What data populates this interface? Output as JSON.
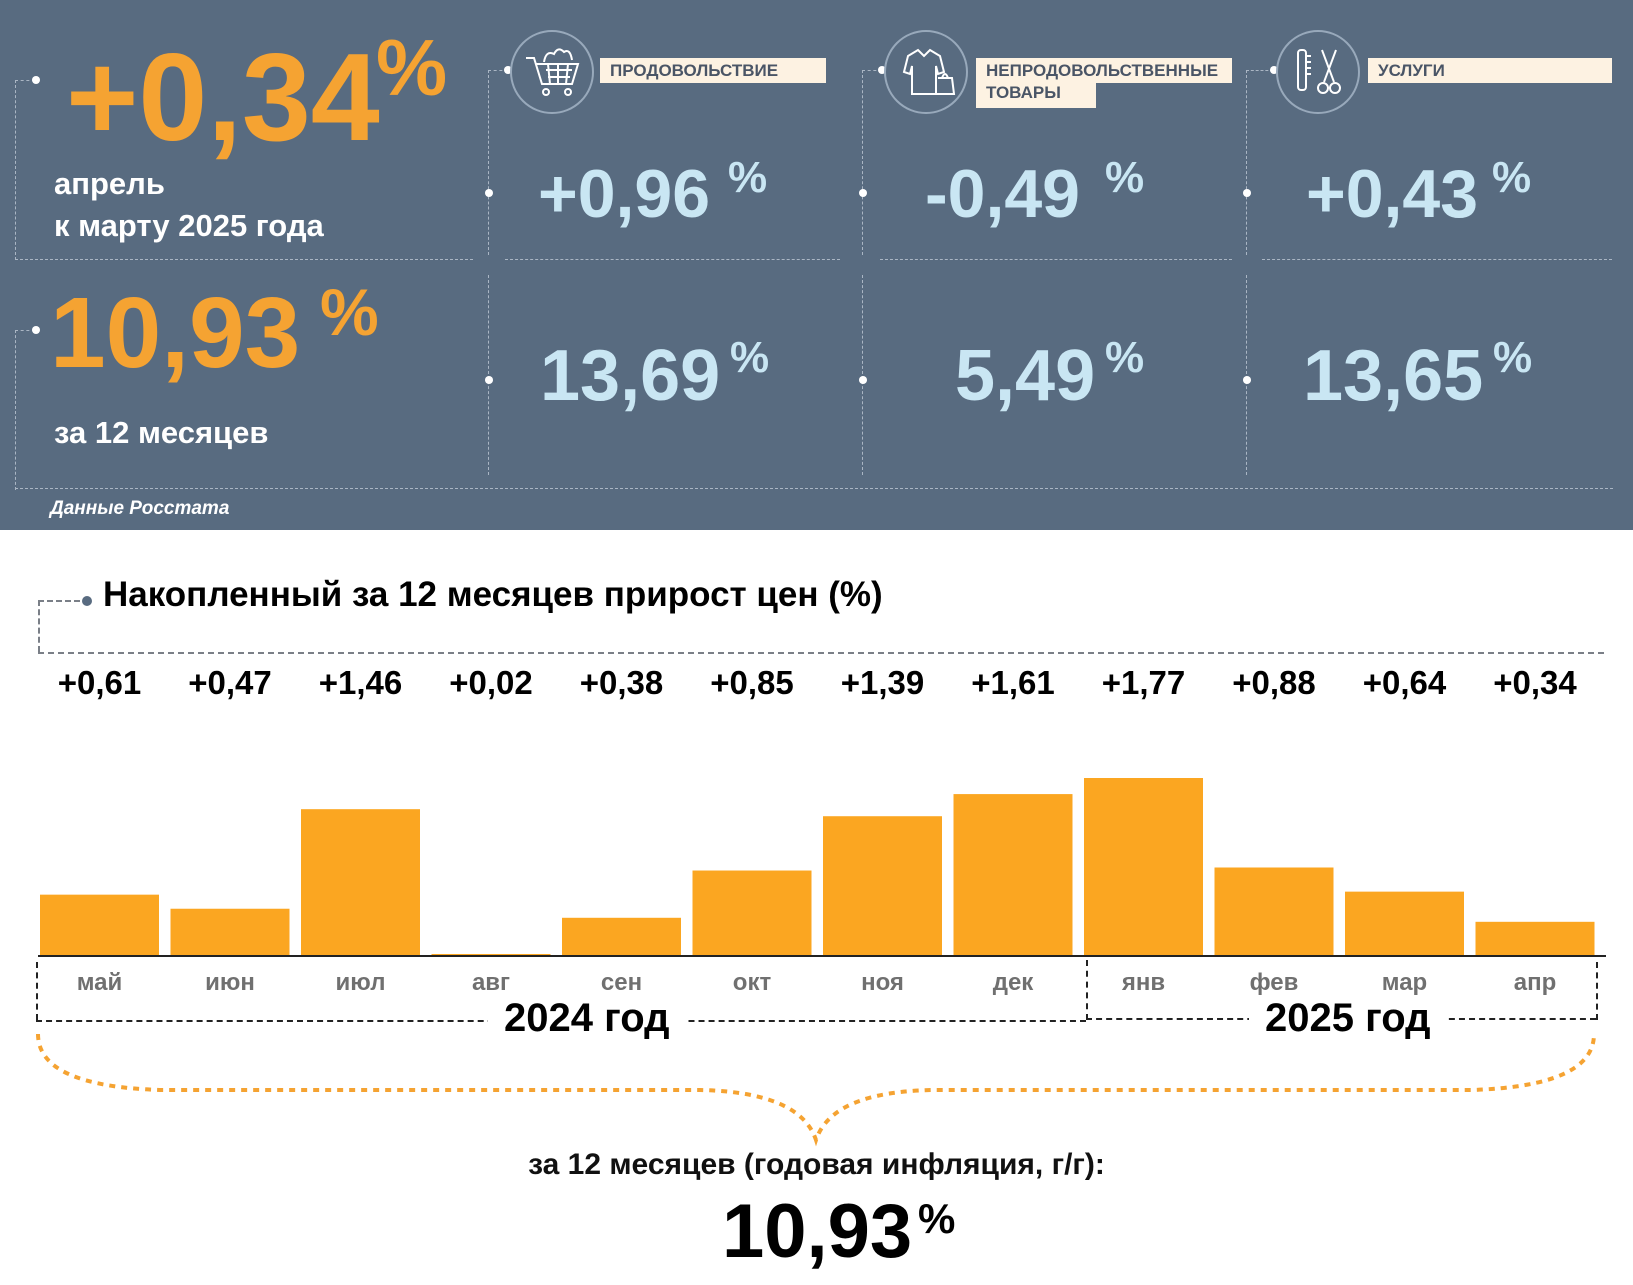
{
  "summary": {
    "monthly_value": "+0,34",
    "monthly_pct": "%",
    "monthly_label_line1": "апрель",
    "monthly_label_line2": "к марту 2025 года",
    "annual_value": "10,93",
    "annual_pct": "%",
    "annual_label": "за 12 месяцев",
    "source": "Данные Росстата"
  },
  "categories": [
    {
      "label": "ПРОДОВОЛЬСТВИЕ",
      "icon": "shopping-cart-icon",
      "monthly": "+0,96",
      "annual": "13,69",
      "pct": "%"
    },
    {
      "label_line1": "НЕПРОДОВОЛЬСТВЕННЫЕ",
      "label_line2": "ТОВАРЫ",
      "icon": "clothing-icon",
      "monthly": "-0,49",
      "annual": "5,49",
      "pct": "%"
    },
    {
      "label": "УСЛУГИ",
      "icon": "scissors-comb-icon",
      "monthly": "+0,43",
      "annual": "13,65",
      "pct": "%"
    }
  ],
  "colors": {
    "panel": "#586b80",
    "orange": "#f5a332",
    "light_blue": "#c9e6f3",
    "bar": "#fba621"
  },
  "chart_title": "Накопленный за 12 месяцев прирост цен (%)",
  "chart_data": {
    "type": "bar",
    "categories": [
      "май",
      "июн",
      "июл",
      "авг",
      "сен",
      "окт",
      "ноя",
      "дек",
      "янв",
      "фев",
      "мар",
      "апр"
    ],
    "values": [
      0.61,
      0.47,
      1.46,
      0.02,
      0.38,
      0.85,
      1.39,
      1.61,
      1.77,
      0.88,
      0.64,
      0.34
    ],
    "value_labels": [
      "+0,61",
      "+0,47",
      "+1,46",
      "+0,02",
      "+0,38",
      "+0,85",
      "+1,39",
      "+1,61",
      "+1,77",
      "+0,88",
      "+0,64",
      "+0,34"
    ],
    "year_groups": [
      {
        "label": "2024 год",
        "months": 8
      },
      {
        "label": "2025 год",
        "months": 4
      }
    ],
    "grid": false
  },
  "annual": {
    "caption": "за 12 месяцев (годовая инфляция, г/г):",
    "value": "10,93",
    "pct": "%"
  }
}
